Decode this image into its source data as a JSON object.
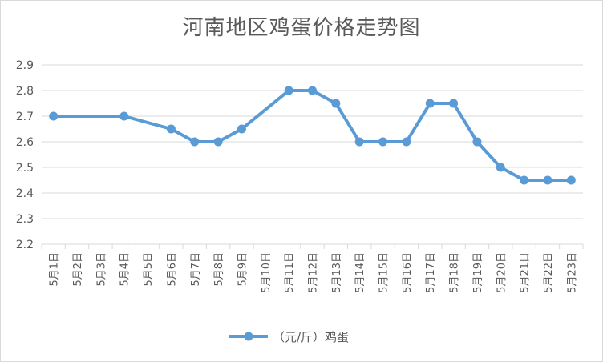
{
  "chart_data": {
    "type": "line",
    "title": "河南地区鸡蛋价格走势图",
    "xlabel": "",
    "ylabel": "",
    "categories": [
      "5月1日",
      "5月2日",
      "5月3日",
      "5月4日",
      "5月5日",
      "5月6日",
      "5月7日",
      "5月8日",
      "5月9日",
      "5月10日",
      "5月11日",
      "5月12日",
      "5月13日",
      "5月14日",
      "5月15日",
      "5月16日",
      "5月17日",
      "5月18日",
      "5月19日",
      "5月20日",
      "5月21日",
      "5月22日",
      "5月23日"
    ],
    "series": [
      {
        "name": "（元/斤）鸡蛋",
        "values": [
          2.7,
          null,
          null,
          2.7,
          null,
          2.65,
          2.6,
          2.6,
          2.65,
          null,
          2.8,
          2.8,
          2.75,
          2.6,
          2.6,
          2.6,
          2.75,
          2.75,
          2.6,
          2.5,
          2.45,
          2.45,
          2.45
        ],
        "color": "#5b9bd5"
      }
    ],
    "ylim": [
      2.2,
      2.9
    ],
    "yticks": [
      "2.2",
      "2.3",
      "2.4",
      "2.5",
      "2.6",
      "2.7",
      "2.8",
      "2.9"
    ],
    "grid": true,
    "legend": "bottom"
  }
}
